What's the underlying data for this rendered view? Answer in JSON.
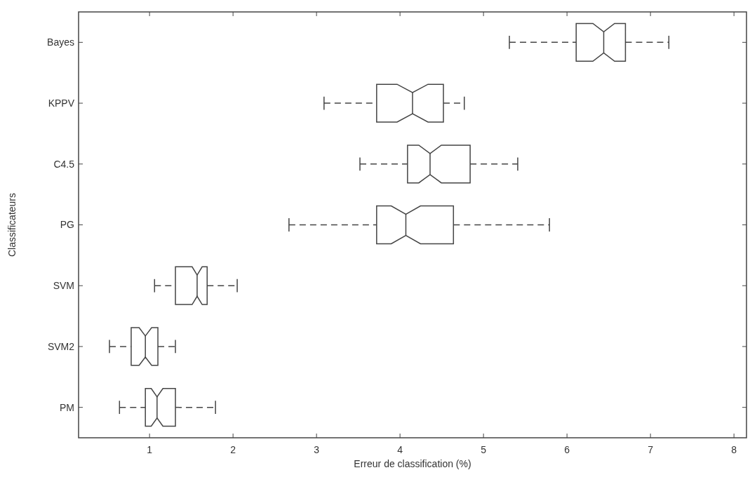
{
  "chart_data": {
    "type": "box",
    "orientation": "horizontal",
    "xlabel": "Erreur de classification (%)",
    "ylabel": "Classificateurs",
    "categories": [
      "Bayes",
      "KPPV",
      "C4.5",
      "PG",
      "SVM",
      "SVM2",
      "PM"
    ],
    "xlim": [
      0.15,
      8.15
    ],
    "xticks": [
      1,
      2,
      3,
      4,
      5,
      6,
      7,
      8
    ],
    "grid": false,
    "line_style": "dashed",
    "color": "#444444",
    "boxes": [
      {
        "low": 5.31,
        "q1": 6.11,
        "median": 6.44,
        "q3": 6.7,
        "high": 7.22
      },
      {
        "low": 3.09,
        "q1": 3.72,
        "median": 4.15,
        "q3": 4.52,
        "high": 4.77
      },
      {
        "low": 3.52,
        "q1": 4.09,
        "median": 4.36,
        "q3": 4.84,
        "high": 5.41
      },
      {
        "low": 2.67,
        "q1": 3.72,
        "median": 4.07,
        "q3": 4.64,
        "high": 5.79
      },
      {
        "low": 1.06,
        "q1": 1.31,
        "median": 1.57,
        "q3": 1.69,
        "high": 2.05
      },
      {
        "low": 0.52,
        "q1": 0.78,
        "median": 0.95,
        "q3": 1.1,
        "high": 1.31
      },
      {
        "low": 0.64,
        "q1": 0.95,
        "median": 1.09,
        "q3": 1.31,
        "high": 1.79
      }
    ]
  }
}
